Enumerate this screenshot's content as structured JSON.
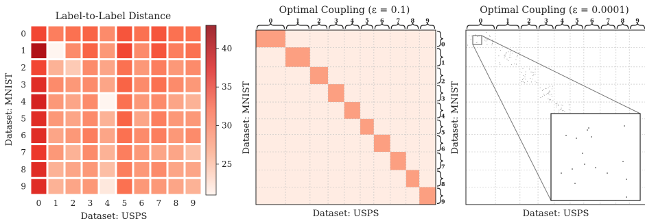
{
  "chart_data": [
    {
      "type": "heatmap",
      "title": "Label-to-Label Distance",
      "xlabel": "Dataset: USPS",
      "ylabel": "Dataset: MNIST",
      "x_categories": [
        "0",
        "1",
        "2",
        "3",
        "4",
        "5",
        "6",
        "7",
        "8",
        "9"
      ],
      "y_categories": [
        "0",
        "1",
        "2",
        "3",
        "4",
        "5",
        "6",
        "7",
        "8",
        "9"
      ],
      "colorbar": {
        "ticks": [
          25,
          30,
          35,
          40
        ],
        "range": [
          21,
          43
        ]
      },
      "values": [
        [
          36,
          32,
          33,
          34,
          31,
          35,
          33,
          35,
          33,
          33
        ],
        [
          42,
          21,
          31,
          34,
          30,
          36,
          31,
          35,
          32,
          33
        ],
        [
          36,
          28,
          26,
          31,
          29,
          33,
          30,
          32,
          30,
          31
        ],
        [
          38,
          31,
          30,
          31,
          29,
          34,
          31,
          33,
          31,
          30
        ],
        [
          39,
          30,
          29,
          31,
          21,
          33,
          30,
          31,
          29,
          28
        ],
        [
          38,
          30,
          29,
          31,
          28,
          34,
          29,
          32,
          30,
          30
        ],
        [
          38,
          29,
          30,
          32,
          29,
          33,
          31,
          32,
          30,
          31
        ],
        [
          37,
          30,
          28,
          31,
          28,
          32,
          30,
          29,
          29,
          27
        ],
        [
          38,
          28,
          29,
          30,
          27,
          32,
          30,
          31,
          29,
          29
        ],
        [
          38,
          28,
          29,
          30,
          23,
          33,
          30,
          30,
          29,
          28
        ]
      ]
    },
    {
      "type": "heatmap",
      "title": "Optimal Coupling (ε = 0.1)",
      "xlabel": "Dataset: USPS",
      "ylabel": "Dataset: MNIST",
      "top_brace_labels": [
        "0",
        "1",
        "2",
        "3",
        "4",
        "5",
        "6",
        "7",
        "8",
        "9"
      ],
      "right_brace_labels": [
        "0",
        "1",
        "2",
        "3",
        "4",
        "5",
        "6",
        "7",
        "8",
        "9"
      ],
      "class_proportions_x": [
        0.164,
        0.137,
        0.1,
        0.09,
        0.089,
        0.076,
        0.091,
        0.088,
        0.074,
        0.091
      ],
      "class_proportions_y": [
        0.099,
        0.112,
        0.099,
        0.102,
        0.097,
        0.09,
        0.099,
        0.104,
        0.098,
        0.1
      ],
      "diagonal_intensity": 0.85,
      "off_diagonal_intensity": 0.12
    },
    {
      "type": "heatmap",
      "title": "Optimal Coupling (ε = 0.0001)",
      "xlabel": "Dataset: USPS",
      "ylabel": "Dataset: MNIST",
      "top_brace_labels": [
        "0",
        "1",
        "2",
        "3",
        "4",
        "5",
        "6",
        "7",
        "8",
        "9"
      ],
      "right_brace_labels": [
        "0",
        "1",
        "2",
        "3",
        "4",
        "5",
        "6",
        "7",
        "8",
        "9"
      ],
      "class_proportions_x": [
        0.164,
        0.137,
        0.1,
        0.09,
        0.089,
        0.076,
        0.091,
        0.088,
        0.074,
        0.091
      ],
      "class_proportions_y": [
        0.099,
        0.112,
        0.099,
        0.102,
        0.097,
        0.09,
        0.099,
        0.104,
        0.098,
        0.1
      ],
      "inset": "zoom"
    }
  ]
}
